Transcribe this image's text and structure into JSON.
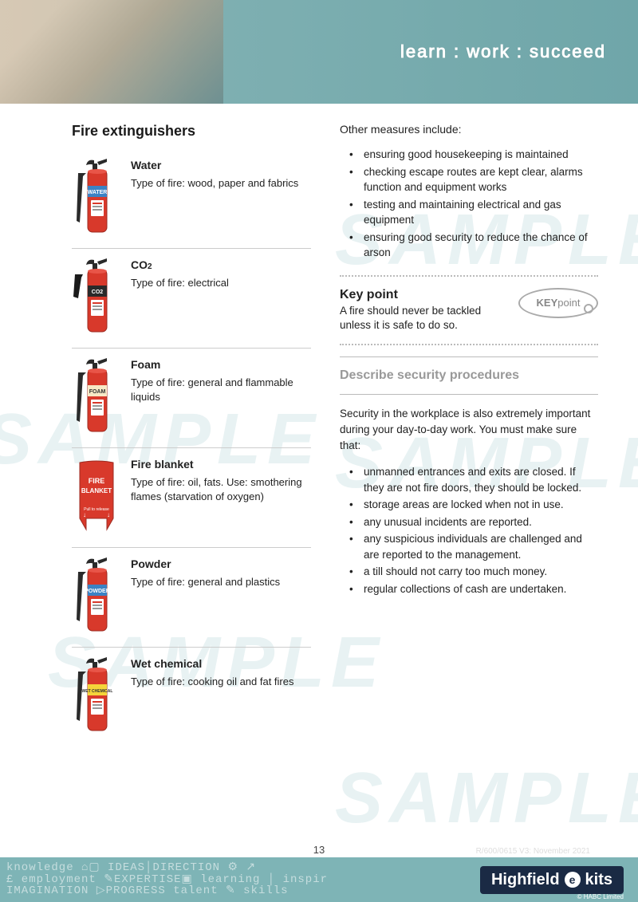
{
  "header": {
    "tagline": "learn : work : succeed",
    "bg_gradient": [
      "#c9d4d0",
      "#7fb0b2",
      "#6fa6a9"
    ]
  },
  "watermark_text": "SAMPLE",
  "left": {
    "title": "Fire extinguishers",
    "items": [
      {
        "name": "Water",
        "desc": "Type of fire: wood, paper and fabrics",
        "band_color": "#3b82c4",
        "band_label": "WATER",
        "body_color": "#d8392b"
      },
      {
        "name": "CO2",
        "desc": "Type of fire: electrical",
        "band_color": "#2a2a2a",
        "band_label": "CO2",
        "body_color": "#d8392b",
        "horn": true
      },
      {
        "name": "Foam",
        "desc": "Type of fire: general and flammable liquids",
        "band_color": "#f7e9c6",
        "band_label": "FOAM",
        "body_color": "#d8392b"
      },
      {
        "name": "Fire blanket",
        "desc": "Type of fire: oil, fats. Use: smothering flames (starvation of oxygen)",
        "is_blanket": true,
        "blanket_color": "#d8392b",
        "blanket_label_top": "FIRE",
        "blanket_label_bottom": "BLANKET",
        "blanket_pull": "Pull to release"
      },
      {
        "name": "Powder",
        "desc": "Type of fire: general and plastics",
        "band_color": "#3b82c4",
        "band_label": "POWDER",
        "body_color": "#d8392b"
      },
      {
        "name": "Wet chemical",
        "desc": "Type of fire: cooking oil and fat fires",
        "band_color": "#f4d43a",
        "band_label": "WET CHEMICAL",
        "body_color": "#d8392b"
      }
    ]
  },
  "right": {
    "measures_intro": "Other measures include:",
    "measures": [
      "ensuring good housekeeping is maintained",
      "checking escape routes are kept clear, alarms function and equipment works",
      "testing and maintaining electrical and gas equipment",
      "ensuring good security to reduce the chance of arson"
    ],
    "keypoint": {
      "title": "Key point",
      "body": "A fire should never be tackled unless it is safe to do so.",
      "badge_prefix": "KEY",
      "badge_suffix": "point"
    },
    "security_title": "Describe security procedures",
    "security_intro": "Security in the workplace is also extremely important during your day-to-day work. You must make sure that:",
    "security_points": [
      "unmanned entrances and exits are closed. If they are not fire doors, they should be locked.",
      "storage areas are locked when not in use.",
      "any unusual incidents are reported.",
      "any suspicious individuals are challenged and are reported to the management.",
      "a till should not carry too much money.",
      "regular collections of cash are undertaken."
    ]
  },
  "page_number": "13",
  "footer_meta": "R/600/0615    V3: November 2021",
  "footer": {
    "word_cloud": "knowledge ⌂▢ IDEAS│DIRECTION ⚙ ↗\n£ employment ✎EXPERTISE▣ learning │ inspir\nIMAGINATION ▷PROGRESS talent ✎ skills",
    "logo_text": "Highfield",
    "logo_suffix": "kits",
    "copyright": "© HABC Limited"
  },
  "colors": {
    "text": "#222222",
    "muted": "#999999",
    "divider": "#cccccc",
    "teal": "#7eb4b6",
    "navy": "#1a2a44",
    "watermark": "#e8f2f3"
  }
}
